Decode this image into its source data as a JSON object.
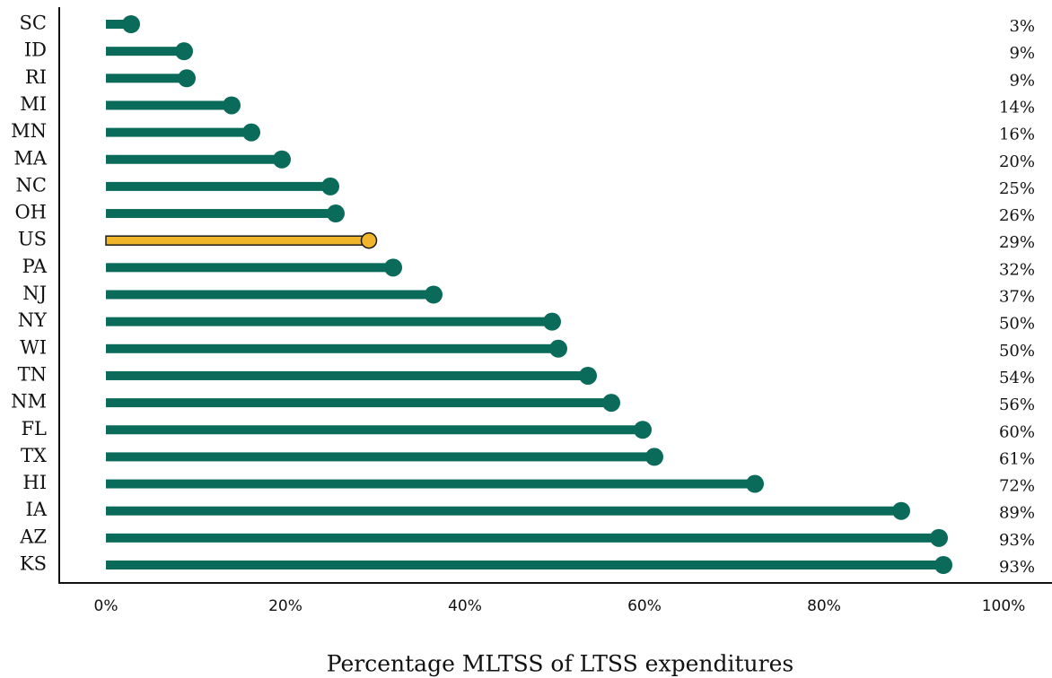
{
  "chart_data": {
    "type": "lollipop",
    "x_label": "Percentage MLTSS of LTSS expenditures",
    "categories": [
      "SC",
      "ID",
      "RI",
      "MI",
      "MN",
      "MA",
      "NC",
      "OH",
      "US",
      "PA",
      "NJ",
      "NY",
      "WI",
      "TN",
      "NM",
      "FL",
      "TX",
      "HI",
      "IA",
      "AZ",
      "KS"
    ],
    "values": [
      2.8,
      8.7,
      9.0,
      14.0,
      16.2,
      19.6,
      25.0,
      25.6,
      29.3,
      32.0,
      36.5,
      49.7,
      50.4,
      53.7,
      56.3,
      59.8,
      61.1,
      72.3,
      88.6,
      92.8,
      93.3
    ],
    "value_labels": [
      "3%",
      "9%",
      "9%",
      "14%",
      "16%",
      "20%",
      "25%",
      "26%",
      "29%",
      "32%",
      "37%",
      "50%",
      "50%",
      "54%",
      "56%",
      "60%",
      "61%",
      "72%",
      "89%",
      "93%",
      "93%"
    ],
    "colors": [
      "#0b6b5a",
      "#0b6b5a",
      "#0b6b5a",
      "#0b6b5a",
      "#0b6b5a",
      "#0b6b5a",
      "#0b6b5a",
      "#0b6b5a",
      "#f1b52a",
      "#0b6b5a",
      "#0b6b5a",
      "#0b6b5a",
      "#0b6b5a",
      "#0b6b5a",
      "#0b6b5a",
      "#0b6b5a",
      "#0b6b5a",
      "#0b6b5a",
      "#0b6b5a",
      "#0b6b5a",
      "#0b6b5a"
    ],
    "edgecolors": [
      "#0b6b5a",
      "#0b6b5a",
      "#0b6b5a",
      "#0b6b5a",
      "#0b6b5a",
      "#0b6b5a",
      "#0b6b5a",
      "#0b6b5a",
      "#1a1a1a",
      "#0b6b5a",
      "#0b6b5a",
      "#0b6b5a",
      "#0b6b5a",
      "#0b6b5a",
      "#0b6b5a",
      "#0b6b5a",
      "#0b6b5a",
      "#0b6b5a",
      "#0b6b5a",
      "#0b6b5a",
      "#0b6b5a"
    ],
    "xlim": [
      0,
      100
    ],
    "xticks": [
      {
        "value": 0,
        "label": "0%"
      },
      {
        "value": 20,
        "label": "20%"
      },
      {
        "value": 40,
        "label": "40%"
      },
      {
        "value": 60,
        "label": "60%"
      },
      {
        "value": 80,
        "label": "80%"
      },
      {
        "value": 100,
        "label": "100%"
      }
    ]
  }
}
